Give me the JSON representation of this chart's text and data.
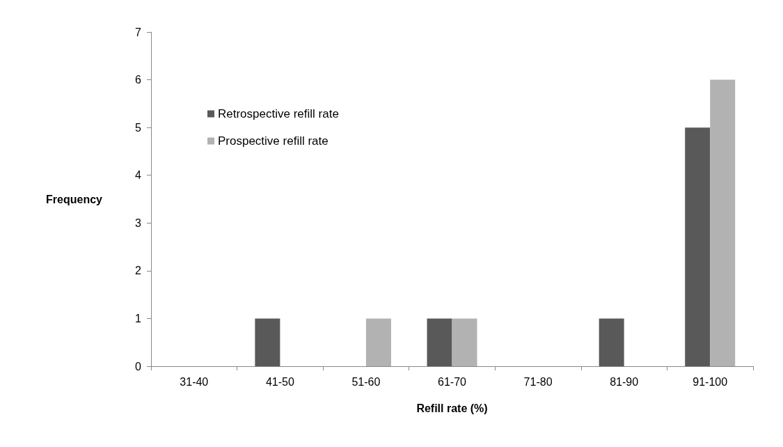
{
  "chart_data": {
    "type": "bar",
    "xlabel": "Refill rate (%)",
    "ylabel": "Frequency",
    "categories": [
      "31-40",
      "41-50",
      "51-60",
      "61-70",
      "71-80",
      "81-90",
      "91-100"
    ],
    "series": [
      {
        "name": "Retrospective refill rate",
        "color": "#595959",
        "values": [
          0,
          1,
          0,
          1,
          0,
          1,
          5
        ]
      },
      {
        "name": "Prospective refill rate",
        "color": "#b2b2b2",
        "values": [
          0,
          0,
          1,
          1,
          0,
          0,
          6
        ]
      }
    ],
    "ylim": [
      0,
      7
    ],
    "yticks": [
      0,
      1,
      2,
      3,
      4,
      5,
      6,
      7
    ],
    "grid": false,
    "legend": "top left"
  }
}
